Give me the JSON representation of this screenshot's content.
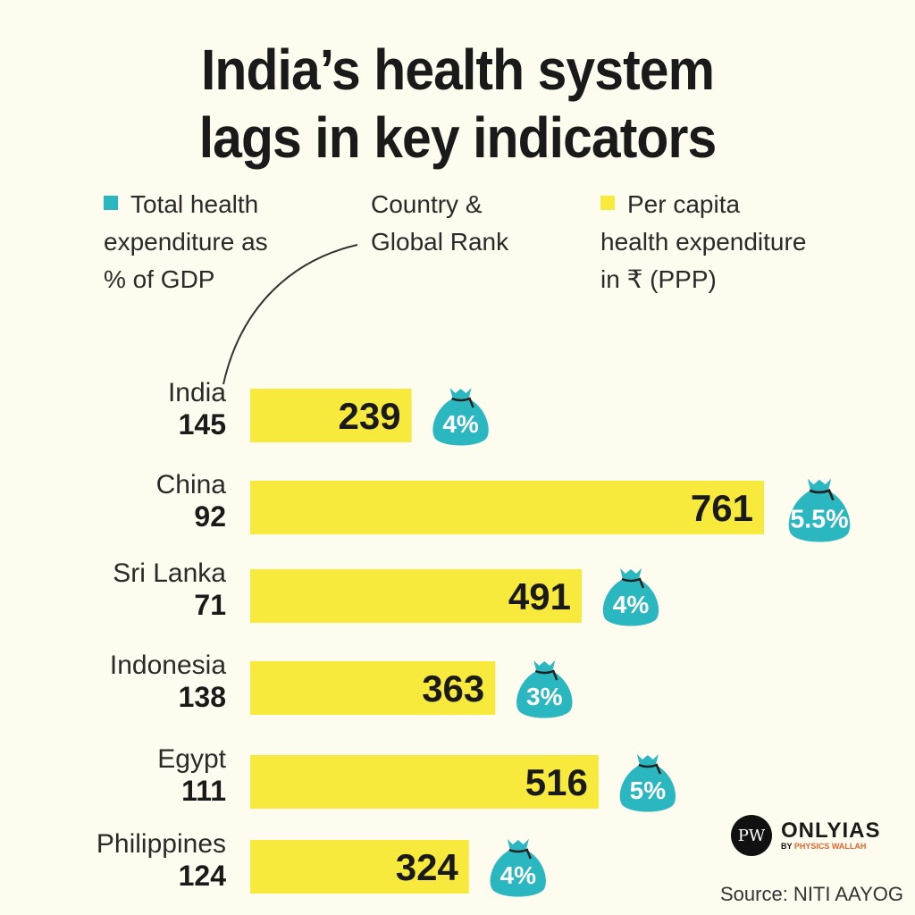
{
  "title": [
    "India’s health system",
    "lags in key indicators"
  ],
  "legend": {
    "gdp": [
      "Total health",
      "expenditure as",
      "% of GDP"
    ],
    "country": [
      "Country &",
      "Global Rank"
    ],
    "per_capita": [
      "Per capita",
      "health expenditure",
      "in ₹ (PPP)"
    ]
  },
  "colors": {
    "bar": "#f8ea3c",
    "bag": "#2bb7bf",
    "background": "#fdfcef"
  },
  "chart_data": {
    "type": "bar",
    "orientation": "horizontal",
    "categories": [
      "India",
      "China",
      "Sri Lanka",
      "Indonesia",
      "Egypt",
      "Philippines"
    ],
    "ranks": [
      "145",
      "92",
      "71",
      "138",
      "111",
      "124"
    ],
    "series": [
      {
        "name": "Per capita health expenditure in ₹ (PPP)",
        "values": [
          239,
          761,
          491,
          363,
          516,
          324
        ],
        "labels": [
          "239",
          "761",
          "491",
          "363",
          "516",
          "324"
        ]
      },
      {
        "name": "Total health expenditure as % of GDP",
        "values": [
          4,
          5.5,
          4,
          3,
          5,
          4
        ],
        "labels": [
          "4%",
          "5.5%",
          "4%",
          "3%",
          "5%",
          "4%"
        ]
      }
    ],
    "grid": false
  },
  "logo": {
    "brand": "ONLYIAS",
    "sub_prefix": "BY",
    "sub": "PHYSICS WALLAH",
    "mark": "PW"
  },
  "source": "Source: NITI AAYOG"
}
